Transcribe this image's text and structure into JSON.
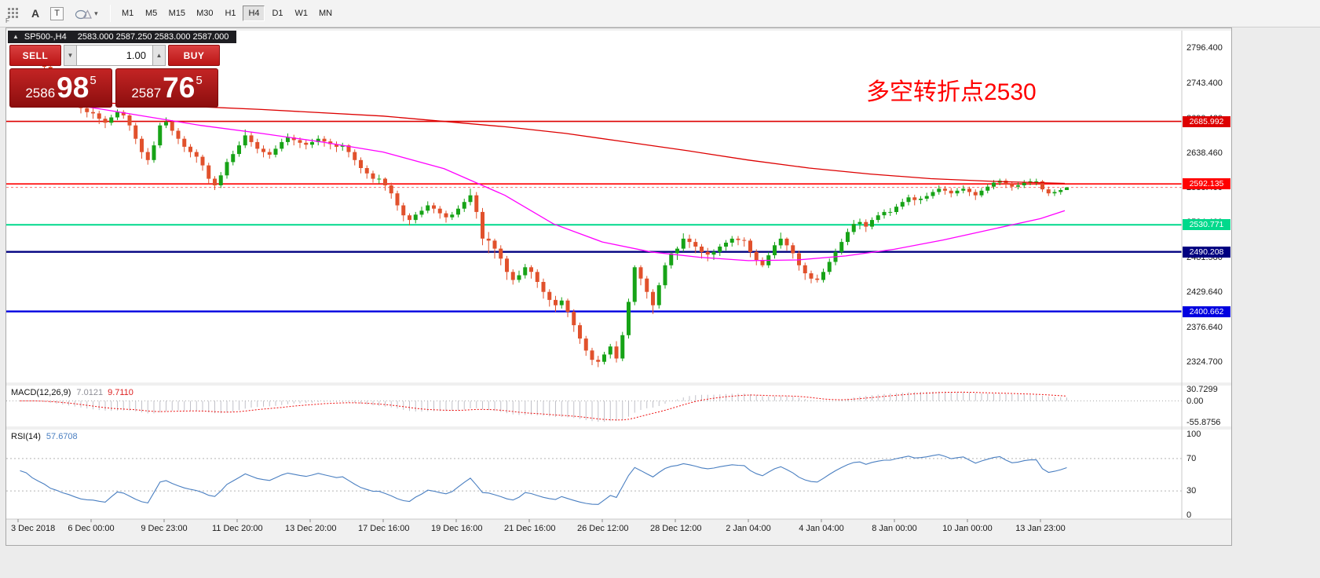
{
  "toolbar": {
    "tools": {
      "f_mark": "F",
      "a_label": "A",
      "t_label": "T",
      "caret": "▾"
    },
    "timeframes": [
      {
        "label": "M1",
        "active": false
      },
      {
        "label": "M5",
        "active": false
      },
      {
        "label": "M15",
        "active": false
      },
      {
        "label": "M30",
        "active": false
      },
      {
        "label": "H1",
        "active": false
      },
      {
        "label": "H4",
        "active": true
      },
      {
        "label": "D1",
        "active": false
      },
      {
        "label": "W1",
        "active": false
      },
      {
        "label": "MN",
        "active": false
      }
    ]
  },
  "symbol_bar": {
    "collapse_arrow": "▲",
    "symbol": "SP500-,H4",
    "ohlc": "2583.000 2587.250 2583.000 2587.000"
  },
  "trade_panel": {
    "sell_label": "SELL",
    "buy_label": "BUY",
    "lot_value": "1.00",
    "spinner_down": "▼",
    "spinner_up": "▲",
    "sell_price": {
      "prefix": "2586",
      "big": "98",
      "sup": "5"
    },
    "buy_price": {
      "prefix": "2587",
      "big": "76",
      "sup": "5"
    }
  },
  "annotation": {
    "text": "多空转折点2530",
    "color": "#ff0000"
  },
  "chart_data": {
    "type": "candlestick",
    "symbol": "SP500-",
    "timeframe": "H4",
    "colors": {
      "bull": "#17a317",
      "bear": "#e1512c",
      "ma_red": "#dd0000",
      "ma_magenta": "#ff00ff",
      "macd_hist": "#c0c0c8",
      "macd_signal": "#ee1010",
      "rsi": "#4a7fc1",
      "bid_line": "#ff7070"
    },
    "candles": [
      [
        2782,
        2800,
        2778,
        2790
      ],
      [
        2790,
        2797,
        2785,
        2794
      ],
      [
        2794,
        2796,
        2780,
        2784
      ],
      [
        2784,
        2788,
        2772,
        2776
      ],
      [
        2776,
        2780,
        2763,
        2768
      ],
      [
        2768,
        2772,
        2752,
        2755
      ],
      [
        2755,
        2758,
        2740,
        2748
      ],
      [
        2748,
        2752,
        2730,
        2738
      ],
      [
        2738,
        2742,
        2722,
        2730
      ],
      [
        2730,
        2734,
        2710,
        2718
      ],
      [
        2718,
        2722,
        2698,
        2706
      ],
      [
        2706,
        2712,
        2692,
        2700
      ],
      [
        2700,
        2706,
        2690,
        2698
      ],
      [
        2698,
        2702,
        2682,
        2690
      ],
      [
        2690,
        2694,
        2676,
        2684
      ],
      [
        2684,
        2696,
        2680,
        2692
      ],
      [
        2692,
        2704,
        2688,
        2700
      ],
      [
        2700,
        2703,
        2690,
        2695
      ],
      [
        2695,
        2697,
        2672,
        2680
      ],
      [
        2680,
        2684,
        2652,
        2660
      ],
      [
        2660,
        2664,
        2630,
        2640
      ],
      [
        2640,
        2646,
        2621,
        2628
      ],
      [
        2628,
        2656,
        2624,
        2650
      ],
      [
        2650,
        2684,
        2646,
        2680
      ],
      [
        2680,
        2692,
        2676,
        2685
      ],
      [
        2685,
        2688,
        2665,
        2672
      ],
      [
        2672,
        2676,
        2652,
        2660
      ],
      [
        2660,
        2664,
        2640,
        2648
      ],
      [
        2648,
        2652,
        2632,
        2640
      ],
      [
        2640,
        2644,
        2624,
        2633
      ],
      [
        2633,
        2636,
        2612,
        2620
      ],
      [
        2620,
        2624,
        2592,
        2600
      ],
      [
        2600,
        2604,
        2583,
        2590
      ],
      [
        2590,
        2610,
        2586,
        2605
      ],
      [
        2605,
        2630,
        2600,
        2625
      ],
      [
        2625,
        2642,
        2620,
        2637
      ],
      [
        2637,
        2656,
        2633,
        2650
      ],
      [
        2650,
        2674,
        2646,
        2665
      ],
      [
        2665,
        2670,
        2648,
        2655
      ],
      [
        2655,
        2660,
        2638,
        2645
      ],
      [
        2645,
        2650,
        2632,
        2640
      ],
      [
        2640,
        2645,
        2630,
        2636
      ],
      [
        2636,
        2650,
        2632,
        2645
      ],
      [
        2645,
        2660,
        2641,
        2655
      ],
      [
        2655,
        2668,
        2650,
        2662
      ],
      [
        2662,
        2666,
        2650,
        2658
      ],
      [
        2658,
        2662,
        2646,
        2654
      ],
      [
        2654,
        2658,
        2644,
        2651
      ],
      [
        2651,
        2660,
        2646,
        2655
      ],
      [
        2655,
        2665,
        2650,
        2660
      ],
      [
        2660,
        2664,
        2648,
        2656
      ],
      [
        2656,
        2660,
        2644,
        2652
      ],
      [
        2652,
        2656,
        2640,
        2648
      ],
      [
        2648,
        2654,
        2642,
        2650
      ],
      [
        2650,
        2652,
        2632,
        2640
      ],
      [
        2640,
        2644,
        2620,
        2628
      ],
      [
        2628,
        2632,
        2608,
        2616
      ],
      [
        2616,
        2620,
        2600,
        2608
      ],
      [
        2608,
        2612,
        2594,
        2600
      ],
      [
        2600,
        2606,
        2593,
        2600
      ],
      [
        2600,
        2602,
        2582,
        2590
      ],
      [
        2590,
        2594,
        2570,
        2578
      ],
      [
        2578,
        2582,
        2552,
        2560
      ],
      [
        2560,
        2564,
        2536,
        2545
      ],
      [
        2545,
        2548,
        2530,
        2538
      ],
      [
        2538,
        2550,
        2533,
        2546
      ],
      [
        2546,
        2558,
        2542,
        2552
      ],
      [
        2552,
        2566,
        2548,
        2560
      ],
      [
        2560,
        2564,
        2548,
        2555
      ],
      [
        2555,
        2559,
        2540,
        2548
      ],
      [
        2548,
        2552,
        2534,
        2542
      ],
      [
        2542,
        2550,
        2538,
        2546
      ],
      [
        2546,
        2560,
        2542,
        2555
      ],
      [
        2555,
        2570,
        2550,
        2565
      ],
      [
        2565,
        2585,
        2560,
        2575
      ],
      [
        2575,
        2580,
        2540,
        2550
      ],
      [
        2550,
        2556,
        2500,
        2510
      ],
      [
        2510,
        2520,
        2488,
        2507
      ],
      [
        2507,
        2510,
        2480,
        2495
      ],
      [
        2495,
        2500,
        2470,
        2480
      ],
      [
        2480,
        2484,
        2448,
        2460
      ],
      [
        2460,
        2464,
        2441,
        2448
      ],
      [
        2448,
        2462,
        2444,
        2455
      ],
      [
        2455,
        2472,
        2450,
        2467
      ],
      [
        2467,
        2470,
        2450,
        2460
      ],
      [
        2460,
        2464,
        2436,
        2445
      ],
      [
        2445,
        2450,
        2420,
        2430
      ],
      [
        2430,
        2434,
        2408,
        2418
      ],
      [
        2418,
        2424,
        2400,
        2410
      ],
      [
        2410,
        2422,
        2405,
        2417
      ],
      [
        2417,
        2420,
        2392,
        2400
      ],
      [
        2400,
        2404,
        2370,
        2380
      ],
      [
        2380,
        2384,
        2352,
        2360
      ],
      [
        2360,
        2364,
        2334,
        2342
      ],
      [
        2342,
        2346,
        2320,
        2328
      ],
      [
        2328,
        2334,
        2317,
        2325
      ],
      [
        2325,
        2340,
        2321,
        2336
      ],
      [
        2336,
        2352,
        2330,
        2348
      ],
      [
        2348,
        2356,
        2324,
        2330
      ],
      [
        2330,
        2370,
        2326,
        2365
      ],
      [
        2365,
        2420,
        2360,
        2415
      ],
      [
        2415,
        2470,
        2410,
        2467
      ],
      [
        2467,
        2470,
        2440,
        2450
      ],
      [
        2450,
        2454,
        2420,
        2430
      ],
      [
        2430,
        2434,
        2397,
        2410
      ],
      [
        2410,
        2444,
        2405,
        2440
      ],
      [
        2440,
        2474,
        2435,
        2470
      ],
      [
        2470,
        2490,
        2465,
        2488
      ],
      [
        2488,
        2498,
        2478,
        2495
      ],
      [
        2495,
        2518,
        2490,
        2510
      ],
      [
        2510,
        2516,
        2496,
        2505
      ],
      [
        2505,
        2510,
        2488,
        2498
      ],
      [
        2498,
        2502,
        2480,
        2490
      ],
      [
        2490,
        2496,
        2476,
        2486
      ],
      [
        2486,
        2494,
        2478,
        2490
      ],
      [
        2490,
        2502,
        2484,
        2498
      ],
      [
        2498,
        2508,
        2492,
        2504
      ],
      [
        2504,
        2514,
        2498,
        2510
      ],
      [
        2510,
        2514,
        2500,
        2508
      ],
      [
        2508,
        2512,
        2498,
        2507
      ],
      [
        2507,
        2510,
        2482,
        2490
      ],
      [
        2490,
        2494,
        2470,
        2478
      ],
      [
        2478,
        2482,
        2467,
        2470
      ],
      [
        2470,
        2490,
        2466,
        2485
      ],
      [
        2485,
        2505,
        2480,
        2500
      ],
      [
        2500,
        2519,
        2495,
        2510
      ],
      [
        2510,
        2512,
        2492,
        2500
      ],
      [
        2500,
        2504,
        2480,
        2488
      ],
      [
        2488,
        2492,
        2462,
        2470
      ],
      [
        2470,
        2474,
        2448,
        2458
      ],
      [
        2458,
        2462,
        2443,
        2450
      ],
      [
        2450,
        2456,
        2444,
        2448
      ],
      [
        2448,
        2465,
        2444,
        2460
      ],
      [
        2460,
        2480,
        2456,
        2475
      ],
      [
        2475,
        2495,
        2470,
        2490
      ],
      [
        2490,
        2510,
        2486,
        2505
      ],
      [
        2505,
        2525,
        2500,
        2520
      ],
      [
        2520,
        2538,
        2516,
        2532
      ],
      [
        2532,
        2540,
        2524,
        2535
      ],
      [
        2535,
        2539,
        2520,
        2528
      ],
      [
        2528,
        2542,
        2524,
        2538
      ],
      [
        2538,
        2550,
        2534,
        2545
      ],
      [
        2545,
        2554,
        2540,
        2550
      ],
      [
        2550,
        2556,
        2544,
        2550
      ],
      [
        2550,
        2562,
        2546,
        2558
      ],
      [
        2558,
        2570,
        2554,
        2565
      ],
      [
        2565,
        2576,
        2560,
        2572
      ],
      [
        2572,
        2576,
        2560,
        2568
      ],
      [
        2568,
        2574,
        2562,
        2570
      ],
      [
        2570,
        2579,
        2566,
        2574
      ],
      [
        2574,
        2584,
        2570,
        2580
      ],
      [
        2580,
        2590,
        2576,
        2585
      ],
      [
        2585,
        2589,
        2576,
        2582
      ],
      [
        2582,
        2586,
        2572,
        2578
      ],
      [
        2578,
        2586,
        2574,
        2582
      ],
      [
        2582,
        2590,
        2578,
        2585
      ],
      [
        2585,
        2588,
        2574,
        2580
      ],
      [
        2580,
        2584,
        2568,
        2575
      ],
      [
        2575,
        2586,
        2572,
        2582
      ],
      [
        2582,
        2592,
        2578,
        2588
      ],
      [
        2588,
        2598,
        2584,
        2594
      ],
      [
        2594,
        2600,
        2590,
        2597
      ],
      [
        2597,
        2600,
        2586,
        2592
      ],
      [
        2592,
        2596,
        2582,
        2588
      ],
      [
        2588,
        2594,
        2584,
        2590
      ],
      [
        2590,
        2598,
        2586,
        2594
      ],
      [
        2594,
        2600,
        2590,
        2596
      ],
      [
        2596,
        2600,
        2590,
        2596
      ],
      [
        2596,
        2598,
        2580,
        2584
      ],
      [
        2584,
        2588,
        2574,
        2578
      ],
      [
        2578,
        2584,
        2574,
        2580
      ],
      [
        2580,
        2586,
        2576,
        2583
      ],
      [
        2583,
        2587.25,
        2583,
        2587
      ]
    ],
    "ma_red": [
      [
        0,
        2718
      ],
      [
        20,
        2712
      ],
      [
        40,
        2704
      ],
      [
        60,
        2694
      ],
      [
        80,
        2678
      ],
      [
        90,
        2668
      ],
      [
        100,
        2655
      ],
      [
        110,
        2642
      ],
      [
        120,
        2628
      ],
      [
        130,
        2616
      ],
      [
        140,
        2607
      ],
      [
        150,
        2600
      ],
      [
        160,
        2596
      ],
      [
        172,
        2593
      ]
    ],
    "ma_magenta": [
      [
        0,
        2722
      ],
      [
        10,
        2710
      ],
      [
        20,
        2695
      ],
      [
        30,
        2680
      ],
      [
        40,
        2668
      ],
      [
        50,
        2655
      ],
      [
        60,
        2640
      ],
      [
        70,
        2615
      ],
      [
        80,
        2575
      ],
      [
        88,
        2532
      ],
      [
        96,
        2505
      ],
      [
        104,
        2490
      ],
      [
        112,
        2482
      ],
      [
        120,
        2477
      ],
      [
        128,
        2478
      ],
      [
        136,
        2484
      ],
      [
        144,
        2494
      ],
      [
        152,
        2508
      ],
      [
        160,
        2524
      ],
      [
        168,
        2540
      ],
      [
        172,
        2552
      ]
    ],
    "hlines": [
      {
        "price": 2685.992,
        "label": "2685.992",
        "color": "#dd0000",
        "width": 1.6
      },
      {
        "price": 2592.135,
        "label": "2592.135",
        "color": "#ff0000",
        "width": 1.6
      },
      {
        "price": 2530.771,
        "label": "2530.771",
        "color": "#00d98c",
        "width": 2
      },
      {
        "price": 2490.208,
        "label": "2490.208",
        "color": "#000080",
        "width": 2.4
      },
      {
        "price": 2400.662,
        "label": "2400.662",
        "color": "#0000e0",
        "width": 2.4
      }
    ],
    "bid_price": 2587.0,
    "price_axis_labels": [
      {
        "text": "2796.400",
        "price": 2796.4
      },
      {
        "text": "2743.400",
        "price": 2743.4
      },
      {
        "text": "2690.460",
        "price": 2690.46
      },
      {
        "text": "2638.460",
        "price": 2638.46
      },
      {
        "text": "2586.460",
        "price": 2586.46
      },
      {
        "text": "2534.460",
        "price": 2534.46
      },
      {
        "text": "2481.580",
        "price": 2481.58
      },
      {
        "text": "2429.640",
        "price": 2429.64
      },
      {
        "text": "2376.640",
        "price": 2376.64
      },
      {
        "text": "2324.700",
        "price": 2324.7
      }
    ],
    "time_labels": [
      {
        "text": "3 Dec 2018",
        "bar": 0
      },
      {
        "text": "6 Dec 00:00",
        "bar": 12
      },
      {
        "text": "9 Dec 23:00",
        "bar": 24
      },
      {
        "text": "11 Dec 20:00",
        "bar": 36
      },
      {
        "text": "13 Dec 20:00",
        "bar": 48
      },
      {
        "text": "17 Dec 16:00",
        "bar": 60
      },
      {
        "text": "19 Dec 16:00",
        "bar": 72
      },
      {
        "text": "21 Dec 16:00",
        "bar": 84
      },
      {
        "text": "26 Dec 12:00",
        "bar": 96
      },
      {
        "text": "28 Dec 12:00",
        "bar": 108
      },
      {
        "text": "2 Jan 04:00",
        "bar": 120
      },
      {
        "text": "4 Jan 04:00",
        "bar": 132
      },
      {
        "text": "8 Jan 00:00",
        "bar": 144
      },
      {
        "text": "10 Jan 00:00",
        "bar": 156
      },
      {
        "text": "13 Jan 23:00",
        "bar": 168
      }
    ],
    "macd": {
      "name": "MACD(12,26,9)",
      "main_value": "7.0121",
      "signal_value": "9.7110",
      "axis": [
        {
          "text": "30.7299",
          "value": 30.7299
        },
        {
          "text": "0.00",
          "value": 0
        },
        {
          "text": "-55.8756",
          "value": -55.8756
        }
      ]
    },
    "rsi": {
      "name": "RSI(14)",
      "value": "57.6708",
      "axis": [
        {
          "text": "100",
          "value": 100
        },
        {
          "text": "70",
          "value": 70
        },
        {
          "text": "30",
          "value": 30
        },
        {
          "text": "0",
          "value": 0
        }
      ],
      "levels": [
        70,
        30
      ]
    }
  }
}
